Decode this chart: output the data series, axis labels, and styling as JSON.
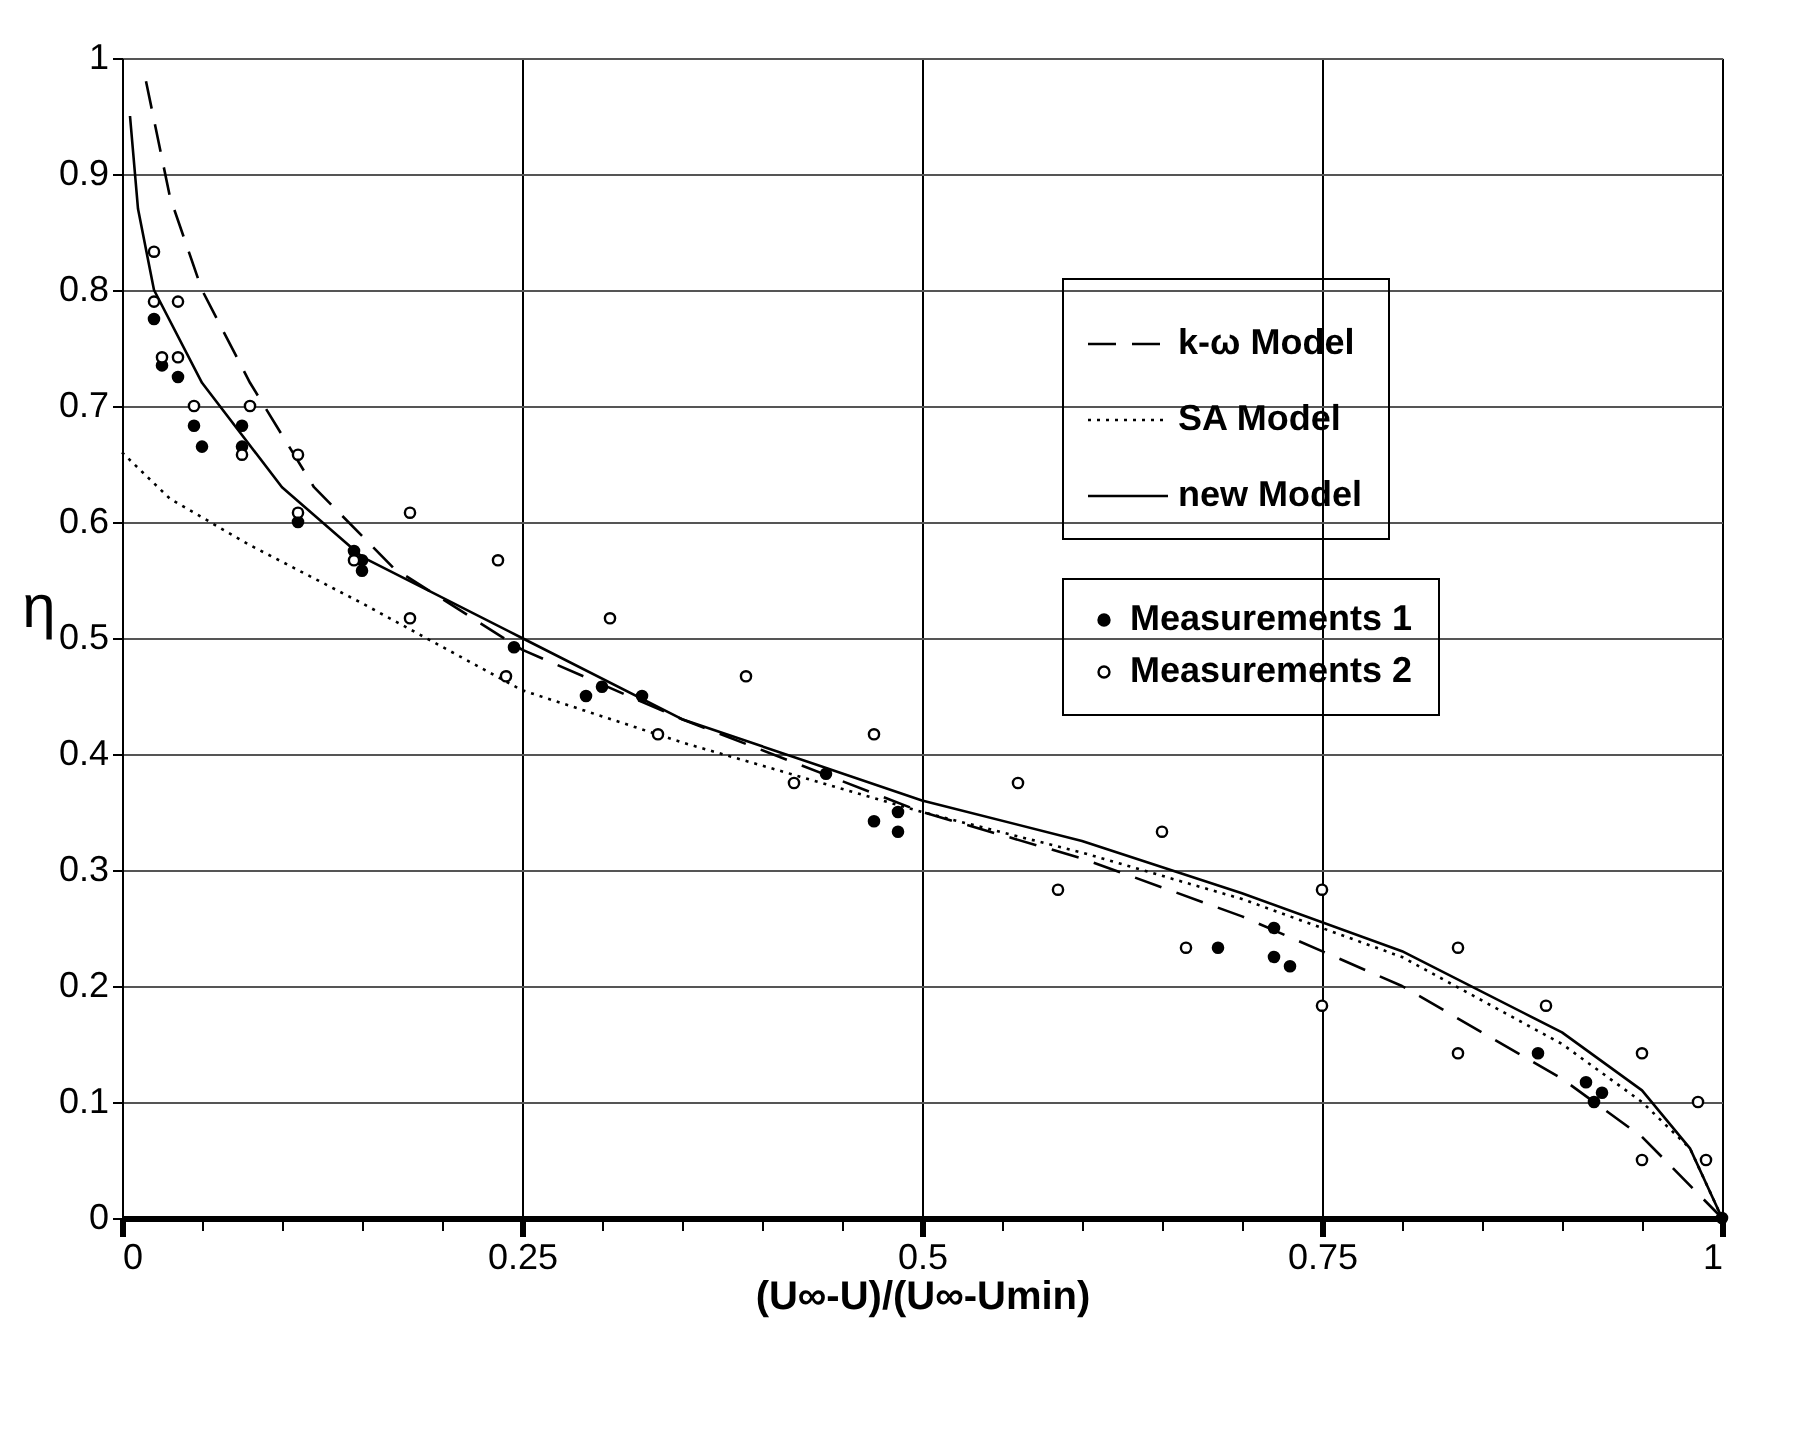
{
  "chart_data": {
    "type": "line",
    "xlabel": "(U∞-U)/(U∞-Umin)",
    "ylabel": "η",
    "xlim": [
      0,
      1
    ],
    "ylim": [
      0,
      1
    ],
    "xticks": [
      0,
      {
        "value": 0.05,
        "label": null
      },
      {
        "value": 0.1,
        "label": null
      },
      {
        "value": 0.15,
        "label": null
      },
      {
        "value": 0.2,
        "label": null
      },
      0.25,
      {
        "value": 0.3,
        "label": null
      },
      {
        "value": 0.35,
        "label": null
      },
      {
        "value": 0.4,
        "label": null
      },
      {
        "value": 0.45,
        "label": null
      },
      0.5,
      {
        "value": 0.55,
        "label": null
      },
      {
        "value": 0.6,
        "label": null
      },
      {
        "value": 0.65,
        "label": null
      },
      {
        "value": 0.7,
        "label": null
      },
      0.75,
      {
        "value": 0.8,
        "label": null
      },
      {
        "value": 0.85,
        "label": null
      },
      {
        "value": 0.9,
        "label": null
      },
      {
        "value": 0.95,
        "label": null
      },
      1
    ],
    "yticks": [
      0,
      0.1,
      0.2,
      0.3,
      0.4,
      0.5,
      0.6,
      0.7,
      0.8,
      0.9,
      1
    ],
    "grid": true,
    "legend": "top right",
    "series": [
      {
        "name": "k-ω Model",
        "line_style": "dashed",
        "color": "#000000",
        "x": [
          0.015,
          0.03,
          0.05,
          0.08,
          0.12,
          0.17,
          0.25,
          0.35,
          0.5,
          0.6,
          0.7,
          0.8,
          0.9,
          0.95,
          1.0
        ],
        "values": [
          0.98,
          0.88,
          0.8,
          0.72,
          0.63,
          0.56,
          0.49,
          0.43,
          0.35,
          0.31,
          0.26,
          0.2,
          0.12,
          0.07,
          0.0
        ]
      },
      {
        "name": "SA Model",
        "line_style": "dotted",
        "color": "#000000",
        "x": [
          0,
          0.03,
          0.08,
          0.15,
          0.25,
          0.35,
          0.5,
          0.6,
          0.7,
          0.8,
          0.9,
          0.95,
          0.98,
          1.0
        ],
        "values": [
          0.66,
          0.62,
          0.58,
          0.53,
          0.455,
          0.41,
          0.35,
          0.315,
          0.275,
          0.225,
          0.15,
          0.1,
          0.06,
          0.0
        ]
      },
      {
        "name": "new Model",
        "line_style": "solid",
        "color": "#000000",
        "x": [
          0.005,
          0.01,
          0.02,
          0.05,
          0.1,
          0.15,
          0.25,
          0.35,
          0.5,
          0.6,
          0.7,
          0.8,
          0.9,
          0.95,
          0.98,
          1.0
        ],
        "values": [
          0.95,
          0.87,
          0.8,
          0.72,
          0.63,
          0.57,
          0.5,
          0.43,
          0.36,
          0.325,
          0.28,
          0.23,
          0.16,
          0.11,
          0.06,
          0.0
        ]
      },
      {
        "name": "Measurements 1",
        "type": "scatter",
        "marker": "circle",
        "color": "#000000",
        "x": [
          0.02,
          0.025,
          0.035,
          0.045,
          0.05,
          0.075,
          0.075,
          0.11,
          0.145,
          0.15,
          0.15,
          0.245,
          0.29,
          0.3,
          0.325,
          0.44,
          0.47,
          0.485,
          0.485,
          0.685,
          0.72,
          0.72,
          0.73,
          0.885,
          0.915,
          0.92,
          0.925,
          1.0
        ],
        "values": [
          0.775,
          0.735,
          0.725,
          0.683,
          0.665,
          0.683,
          0.665,
          0.6,
          0.575,
          0.567,
          0.558,
          0.492,
          0.45,
          0.458,
          0.45,
          0.383,
          0.342,
          0.35,
          0.333,
          0.233,
          0.25,
          0.225,
          0.217,
          0.142,
          0.117,
          0.1,
          0.108,
          0.0
        ]
      },
      {
        "name": "Measurements 2",
        "type": "scatter",
        "marker": "circle",
        "color": "#000000",
        "x": [
          0.02,
          0.02,
          0.025,
          0.035,
          0.035,
          0.045,
          0.08,
          0.075,
          0.11,
          0.11,
          0.145,
          0.18,
          0.18,
          0.235,
          0.24,
          0.305,
          0.335,
          0.39,
          0.42,
          0.47,
          0.56,
          0.585,
          0.65,
          0.665,
          0.75,
          0.75,
          0.835,
          0.835,
          0.89,
          0.95,
          0.95,
          0.985,
          0.99
        ],
        "values": [
          0.833,
          0.79,
          0.742,
          0.79,
          0.742,
          0.7,
          0.7,
          0.658,
          0.658,
          0.608,
          0.567,
          0.608,
          0.517,
          0.567,
          0.467,
          0.517,
          0.417,
          0.467,
          0.375,
          0.417,
          0.375,
          0.283,
          0.333,
          0.233,
          0.283,
          0.183,
          0.233,
          0.142,
          0.183,
          0.142,
          0.05,
          0.1,
          0.05
        ]
      }
    ]
  }
}
